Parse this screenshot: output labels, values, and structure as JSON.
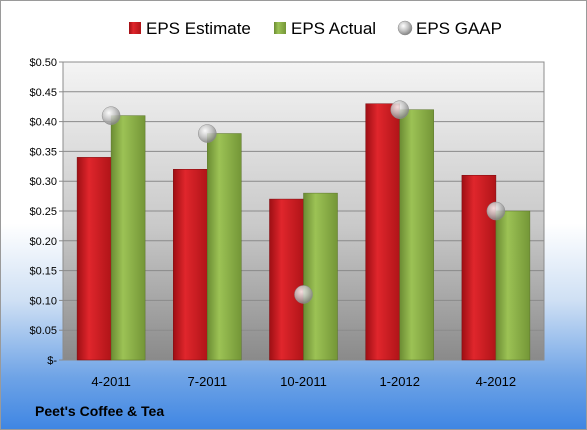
{
  "company": "Peet's Coffee & Tea",
  "colors": {
    "estimate": "#d11c22",
    "actual": "#8fb34a",
    "gaap": "#b8b8b8"
  },
  "chart_data": {
    "type": "bar",
    "categories": [
      "4-2011",
      "7-2011",
      "10-2011",
      "1-2012",
      "4-2012"
    ],
    "series": [
      {
        "name": "EPS Estimate",
        "kind": "bar",
        "values": [
          0.34,
          0.32,
          0.27,
          0.43,
          0.31
        ]
      },
      {
        "name": "EPS Actual",
        "kind": "bar",
        "values": [
          0.41,
          0.38,
          0.28,
          0.42,
          0.25
        ]
      },
      {
        "name": "EPS GAAP",
        "kind": "marker",
        "values": [
          0.41,
          0.38,
          0.11,
          0.42,
          0.25
        ]
      }
    ],
    "ylim": [
      0,
      0.5
    ],
    "yticks": [
      0,
      0.05,
      0.1,
      0.15,
      0.2,
      0.25,
      0.3,
      0.35,
      0.4,
      0.45,
      0.5
    ],
    "ytick_labels": [
      "$-",
      "$0.05",
      "$0.10",
      "$0.15",
      "$0.20",
      "$0.25",
      "$0.30",
      "$0.35",
      "$0.40",
      "$0.45",
      "$0.50"
    ],
    "grid": true,
    "legend_position": "top"
  }
}
